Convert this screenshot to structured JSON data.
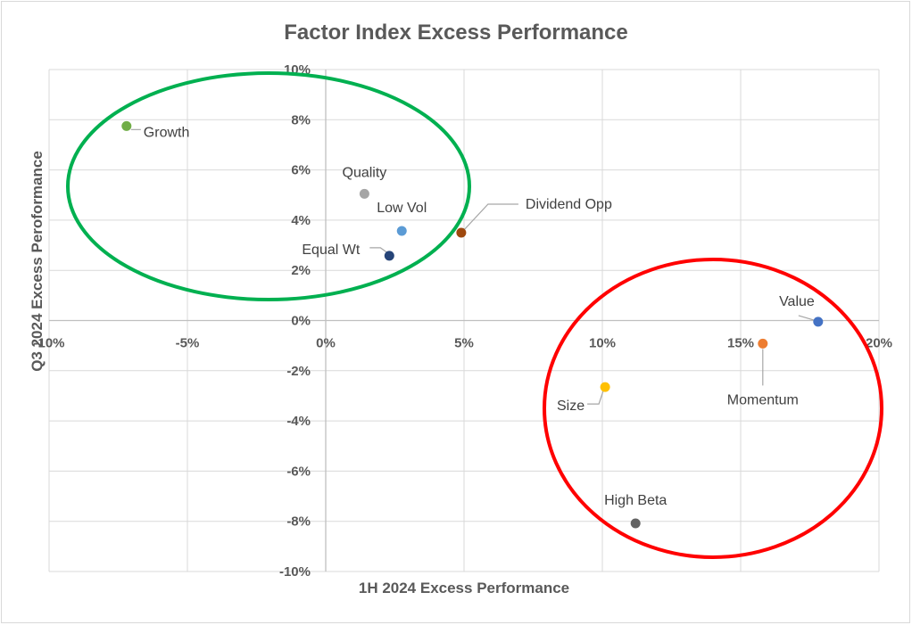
{
  "chart_data": {
    "type": "scatter",
    "title": "Factor Index Excess Performance",
    "xlabel": "1H 2024 Excess Performance",
    "ylabel": "Q3 2024 Excess Peroformance",
    "xlim": [
      -0.1,
      0.2
    ],
    "ylim": [
      -0.1,
      0.1
    ],
    "x_ticks": [
      -0.1,
      -0.05,
      0,
      0.05,
      0.1,
      0.15,
      0.2
    ],
    "x_tick_labels": [
      "-10%",
      "-5%",
      "0%",
      "5%",
      "10%",
      "15%",
      "20%"
    ],
    "y_ticks": [
      0.1,
      0.08,
      0.06,
      0.04,
      0.02,
      0,
      -0.02,
      -0.04,
      -0.06,
      -0.08,
      -0.1
    ],
    "y_tick_labels": [
      "10%",
      "8%",
      "6%",
      "4%",
      "2%",
      "0%",
      "-2%",
      "-4%",
      "-6%",
      "-8%",
      "-10%"
    ],
    "grid": true,
    "points": [
      {
        "label": "Growth",
        "x": -0.072,
        "y": 0.0775,
        "color": "#70ad47",
        "label_pos": "right"
      },
      {
        "label": "Quality",
        "x": 0.014,
        "y": 0.0505,
        "color": "#a5a5a5",
        "label_pos": "above-left"
      },
      {
        "label": "Low Vol",
        "x": 0.0275,
        "y": 0.0357,
        "color": "#5b9bd5",
        "label_pos": "above"
      },
      {
        "label": "Equal Wt",
        "x": 0.023,
        "y": 0.0258,
        "color": "#264478",
        "label_pos": "left"
      },
      {
        "label": "Dividend Opp",
        "x": 0.049,
        "y": 0.035,
        "color": "#9e480e",
        "label_pos": "upper-right"
      },
      {
        "label": "Value",
        "x": 0.178,
        "y": -0.0005,
        "color": "#4472c4",
        "label_pos": "upper-left"
      },
      {
        "label": "Momentum",
        "x": 0.158,
        "y": -0.0092,
        "color": "#ed7d31",
        "label_pos": "below"
      },
      {
        "label": "Size",
        "x": 0.101,
        "y": -0.0265,
        "color": "#ffc000",
        "label_pos": "lower-left"
      },
      {
        "label": "High Beta",
        "x": 0.112,
        "y": -0.0808,
        "color": "#636363",
        "label_pos": "above"
      }
    ],
    "ellipses": [
      {
        "name": "upper-left-cluster",
        "color": "#00b050"
      },
      {
        "name": "lower-right-cluster",
        "color": "#ff0000"
      }
    ]
  }
}
